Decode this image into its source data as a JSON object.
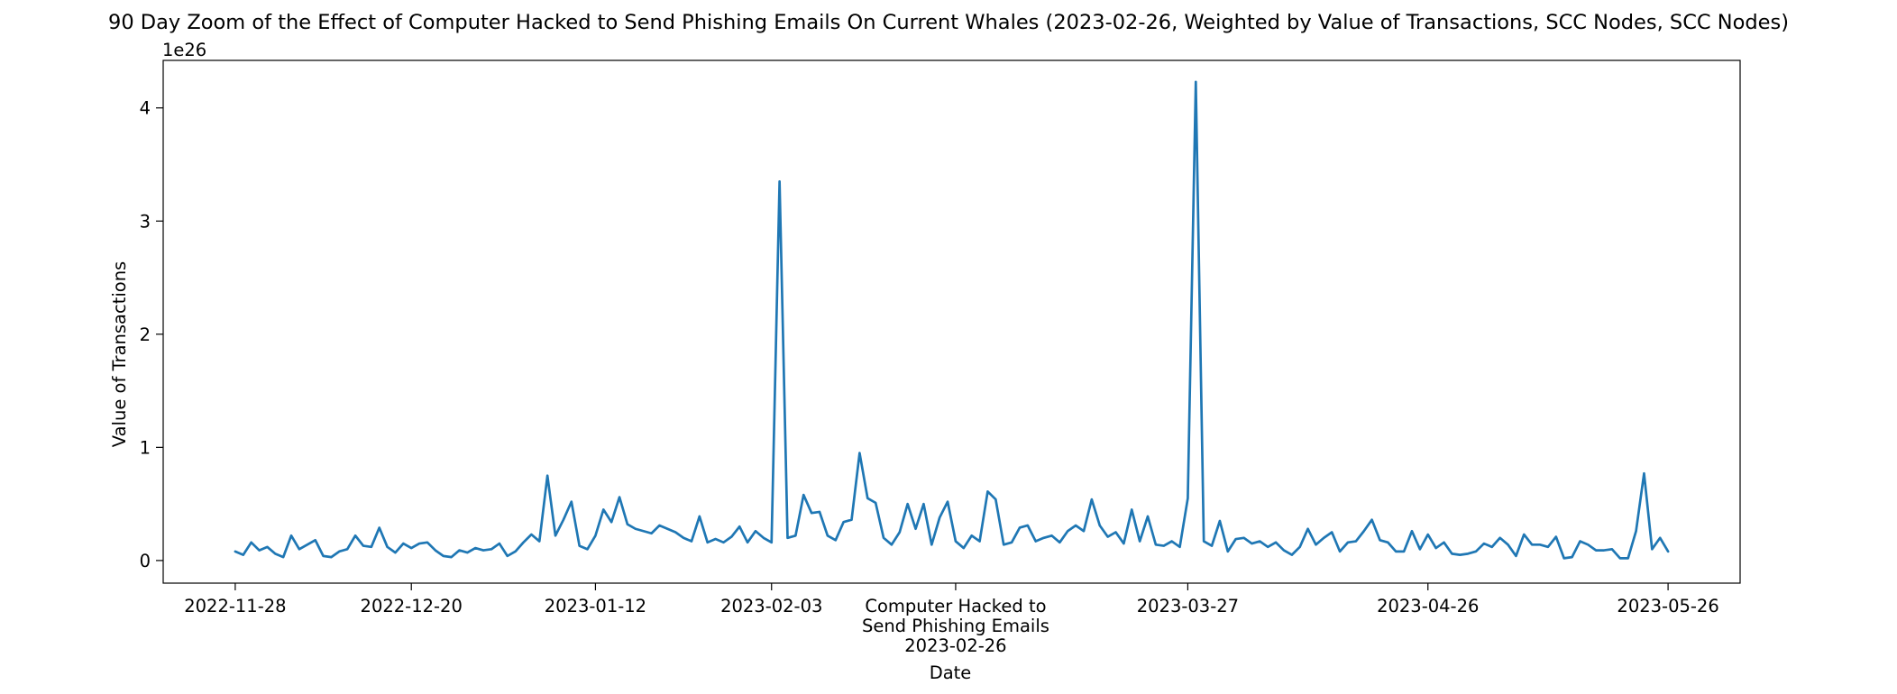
{
  "chart_data": {
    "type": "line",
    "title": "90 Day Zoom of the Effect of Computer Hacked to Send Phishing Emails On Current Whales (2023-02-26, Weighted by Value of Transactions, SCC Nodes, SCC Nodes)",
    "xlabel": "Date",
    "ylabel": "Value of Transactions",
    "y_offset_label": "1e26",
    "y_unit_multiplier": 1e+26,
    "ylim": [
      -0.2,
      4.42
    ],
    "y_ticks": [
      0,
      1,
      2,
      3,
      4
    ],
    "x_range": [
      "2022-11-19",
      "2023-06-04"
    ],
    "x_ticks": [
      {
        "date": "2022-11-28",
        "label": "2022-11-28"
      },
      {
        "date": "2022-12-20",
        "label": "2022-12-20"
      },
      {
        "date": "2023-01-12",
        "label": "2023-01-12"
      },
      {
        "date": "2023-02-03",
        "label": "2023-02-03"
      },
      {
        "date": "2023-02-26",
        "label": "Computer Hacked to\nSend Phishing Emails\n2023-02-26"
      },
      {
        "date": "2023-03-27",
        "label": "2023-03-27"
      },
      {
        "date": "2023-04-26",
        "label": "2023-04-26"
      },
      {
        "date": "2023-05-26",
        "label": "2023-05-26"
      }
    ],
    "grid": false,
    "line_color": "#1f77b4",
    "series": [
      {
        "x": [
          "2022-11-28",
          "2022-11-29",
          "2022-11-30",
          "2022-12-01",
          "2022-12-02",
          "2022-12-03",
          "2022-12-04",
          "2022-12-05",
          "2022-12-06",
          "2022-12-07",
          "2022-12-08",
          "2022-12-09",
          "2022-12-10",
          "2022-12-11",
          "2022-12-12",
          "2022-12-13",
          "2022-12-14",
          "2022-12-15",
          "2022-12-16",
          "2022-12-17",
          "2022-12-18",
          "2022-12-19",
          "2022-12-20",
          "2022-12-21",
          "2022-12-22",
          "2022-12-23",
          "2022-12-24",
          "2022-12-25",
          "2022-12-26",
          "2022-12-27",
          "2022-12-28",
          "2022-12-29",
          "2022-12-30",
          "2022-12-31",
          "2023-01-01",
          "2023-01-02",
          "2023-01-03",
          "2023-01-04",
          "2023-01-05",
          "2023-01-06",
          "2023-01-07",
          "2023-01-08",
          "2023-01-09",
          "2023-01-10",
          "2023-01-11",
          "2023-01-12",
          "2023-01-13",
          "2023-01-14",
          "2023-01-15",
          "2023-01-16",
          "2023-01-17",
          "2023-01-18",
          "2023-01-19",
          "2023-01-20",
          "2023-01-21",
          "2023-01-22",
          "2023-01-23",
          "2023-01-24",
          "2023-01-25",
          "2023-01-26",
          "2023-01-27",
          "2023-01-28",
          "2023-01-29",
          "2023-01-30",
          "2023-01-31",
          "2023-02-01",
          "2023-02-02",
          "2023-02-03",
          "2023-02-04",
          "2023-02-05",
          "2023-02-06",
          "2023-02-07",
          "2023-02-08",
          "2023-02-09",
          "2023-02-10",
          "2023-02-11",
          "2023-02-12",
          "2023-02-13",
          "2023-02-14",
          "2023-02-15",
          "2023-02-16",
          "2023-02-17",
          "2023-02-18",
          "2023-02-19",
          "2023-02-20",
          "2023-02-21",
          "2023-02-22",
          "2023-02-23",
          "2023-02-24",
          "2023-02-25",
          "2023-02-26",
          "2023-02-27",
          "2023-02-28",
          "2023-03-01",
          "2023-03-02",
          "2023-03-03",
          "2023-03-04",
          "2023-03-05",
          "2023-03-06",
          "2023-03-07",
          "2023-03-08",
          "2023-03-09",
          "2023-03-10",
          "2023-03-11",
          "2023-03-12",
          "2023-03-13",
          "2023-03-14",
          "2023-03-15",
          "2023-03-16",
          "2023-03-17",
          "2023-03-18",
          "2023-03-19",
          "2023-03-20",
          "2023-03-21",
          "2023-03-22",
          "2023-03-23",
          "2023-03-24",
          "2023-03-25",
          "2023-03-26",
          "2023-03-27",
          "2023-03-28",
          "2023-03-29",
          "2023-03-30",
          "2023-03-31",
          "2023-04-01",
          "2023-04-02",
          "2023-04-03",
          "2023-04-04",
          "2023-04-05",
          "2023-04-06",
          "2023-04-07",
          "2023-04-08",
          "2023-04-09",
          "2023-04-10",
          "2023-04-11",
          "2023-04-12",
          "2023-04-13",
          "2023-04-14",
          "2023-04-15",
          "2023-04-16",
          "2023-04-17",
          "2023-04-18",
          "2023-04-19",
          "2023-04-20",
          "2023-04-21",
          "2023-04-22",
          "2023-04-23",
          "2023-04-24",
          "2023-04-25",
          "2023-04-26",
          "2023-04-27",
          "2023-04-28",
          "2023-04-29",
          "2023-04-30",
          "2023-05-01",
          "2023-05-02",
          "2023-05-03",
          "2023-05-04",
          "2023-05-05",
          "2023-05-06",
          "2023-05-07",
          "2023-05-08",
          "2023-05-09",
          "2023-05-10",
          "2023-05-11",
          "2023-05-12",
          "2023-05-13",
          "2023-05-14",
          "2023-05-15",
          "2023-05-16",
          "2023-05-17",
          "2023-05-18",
          "2023-05-19",
          "2023-05-20",
          "2023-05-21",
          "2023-05-22",
          "2023-05-23",
          "2023-05-24",
          "2023-05-25",
          "2023-05-26"
        ],
        "y": [
          0.08,
          0.05,
          0.16,
          0.09,
          0.12,
          0.06,
          0.03,
          0.22,
          0.1,
          0.14,
          0.18,
          0.04,
          0.03,
          0.08,
          0.1,
          0.22,
          0.13,
          0.12,
          0.29,
          0.12,
          0.07,
          0.15,
          0.11,
          0.15,
          0.16,
          0.09,
          0.04,
          0.03,
          0.09,
          0.07,
          0.11,
          0.09,
          0.1,
          0.15,
          0.04,
          0.08,
          0.16,
          0.23,
          0.17,
          0.75,
          0.22,
          0.36,
          0.52,
          0.13,
          0.1,
          0.22,
          0.45,
          0.34,
          0.56,
          0.32,
          0.28,
          0.26,
          0.24,
          0.31,
          0.28,
          0.25,
          0.2,
          0.17,
          0.39,
          0.16,
          0.19,
          0.16,
          0.21,
          0.3,
          0.16,
          0.26,
          0.2,
          0.16,
          3.35,
          0.2,
          0.22,
          0.58,
          0.42,
          0.43,
          0.22,
          0.18,
          0.34,
          0.36,
          0.95,
          0.55,
          0.51,
          0.2,
          0.14,
          0.25,
          0.5,
          0.28,
          0.5,
          0.14,
          0.38,
          0.52,
          0.17,
          0.11,
          0.22,
          0.17,
          0.61,
          0.54,
          0.14,
          0.16,
          0.29,
          0.31,
          0.17,
          0.2,
          0.22,
          0.16,
          0.26,
          0.31,
          0.26,
          0.54,
          0.31,
          0.21,
          0.25,
          0.15,
          0.45,
          0.17,
          0.39,
          0.14,
          0.13,
          0.17,
          0.12,
          0.55,
          4.23,
          0.17,
          0.13,
          0.35,
          0.08,
          0.19,
          0.2,
          0.15,
          0.17,
          0.12,
          0.16,
          0.09,
          0.05,
          0.12,
          0.28,
          0.14,
          0.2,
          0.25,
          0.08,
          0.16,
          0.17,
          0.26,
          0.36,
          0.18,
          0.16,
          0.08,
          0.08,
          0.26,
          0.1,
          0.23,
          0.11,
          0.16,
          0.06,
          0.05,
          0.06,
          0.08,
          0.15,
          0.12,
          0.2,
          0.14,
          0.04,
          0.23,
          0.14,
          0.14,
          0.12,
          0.21,
          0.02,
          0.03,
          0.17,
          0.14,
          0.09,
          0.09,
          0.1,
          0.02,
          0.02,
          0.26,
          0.77,
          0.1,
          0.2,
          0.08
        ]
      }
    ]
  }
}
